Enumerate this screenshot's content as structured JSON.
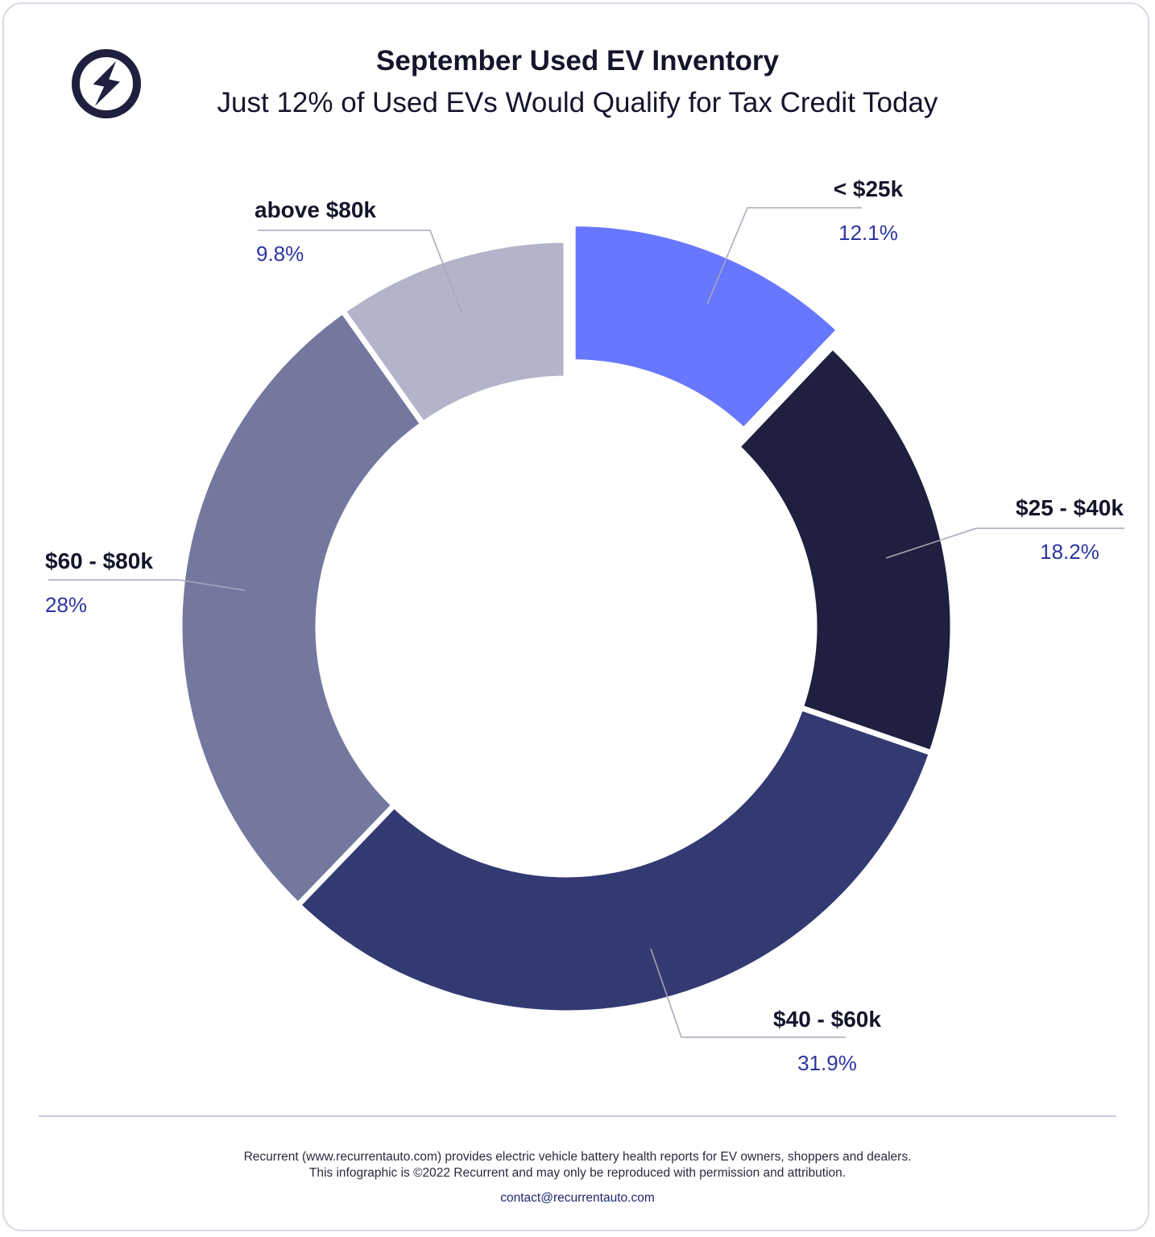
{
  "header": {
    "title": "September Used EV Inventory",
    "subtitle": "Just 12% of Used EVs Would Qualify for Tax Credit Today",
    "logo_icon": "lightning-bolt-icon"
  },
  "chart_data": {
    "type": "pie",
    "variant": "donut",
    "categories": [
      "< $25k",
      "$25 - $40k",
      "$40 - $60k",
      "$60 - $80k",
      "above $80k"
    ],
    "values": [
      12.1,
      18.2,
      31.9,
      28,
      9.8
    ],
    "value_labels": [
      "12.1%",
      "18.2%",
      "31.9%",
      "28%",
      "9.8%"
    ],
    "colors": [
      "#6877ff",
      "#1f1f3f",
      "#333a72",
      "#74779e",
      "#b3b4ca"
    ],
    "exploded_slice": "< $25k",
    "label_placement": "outside with leader lines"
  },
  "footer": {
    "line1": "Recurrent (www.recurrentauto.com) provides electric vehicle battery health reports for EV owners, shoppers and dealers.",
    "line2": "This infographic is ©2022 Recurrent and may only be reproduced with permission and attribution.",
    "contact": "contact@recurrentauto.com"
  },
  "colors": {
    "title_text": "#14142b",
    "value_text": "#2d35a0",
    "divider": "#c9c9de",
    "border": "#d9d9e6"
  }
}
